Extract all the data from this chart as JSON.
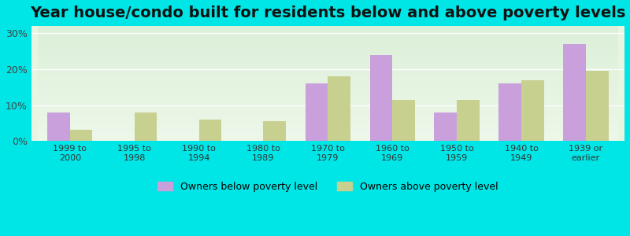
{
  "title": "Year house/condo built for residents below and above poverty levels",
  "categories": [
    "1999 to\n2000",
    "1995 to\n1998",
    "1990 to\n1994",
    "1980 to\n1989",
    "1970 to\n1979",
    "1960 to\n1969",
    "1950 to\n1959",
    "1940 to\n1949",
    "1939 or\nearlier"
  ],
  "below_poverty": [
    8.0,
    0.0,
    0.0,
    0.0,
    16.0,
    24.0,
    8.0,
    16.0,
    27.0
  ],
  "above_poverty": [
    3.0,
    8.0,
    6.0,
    5.5,
    18.0,
    11.5,
    11.5,
    17.0,
    19.5
  ],
  "below_color": "#c9a0dc",
  "above_color": "#c8d090",
  "background_outer": "#00e5e5",
  "background_plot_top": "#e8f5e0",
  "background_plot_bottom": "#d0f0e8",
  "ylim": [
    0,
    32
  ],
  "yticks": [
    0,
    10,
    20,
    30
  ],
  "ytick_labels": [
    "0%",
    "10%",
    "20%",
    "30%"
  ],
  "legend_below": "Owners below poverty level",
  "legend_above": "Owners above poverty level",
  "title_fontsize": 14,
  "bar_width": 0.35
}
